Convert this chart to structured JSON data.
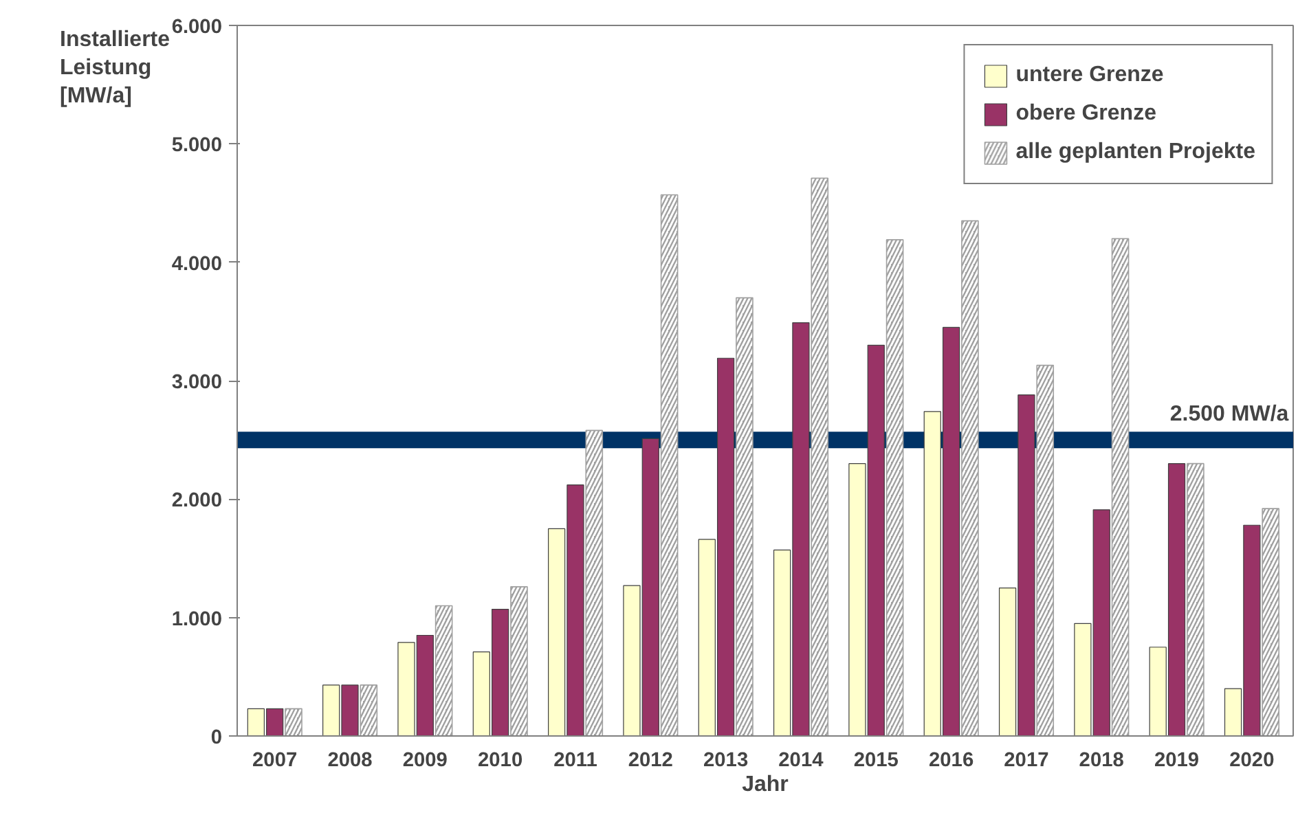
{
  "chart_data": {
    "type": "bar",
    "xlabel": "Jahr",
    "ylabel": "Installierte Leistung [MW/a]",
    "categories": [
      "2007",
      "2008",
      "2009",
      "2010",
      "2011",
      "2012",
      "2013",
      "2014",
      "2015",
      "2016",
      "2017",
      "2018",
      "2019",
      "2020"
    ],
    "series": [
      {
        "name": "untere Grenze",
        "color": "#ffffcc",
        "values": [
          230,
          430,
          790,
          710,
          1750,
          1270,
          1660,
          1570,
          2300,
          2740,
          1250,
          950,
          750,
          400
        ]
      },
      {
        "name": "obere Grenze",
        "color": "#993366",
        "values": [
          230,
          430,
          850,
          1070,
          2120,
          2510,
          3190,
          3490,
          3300,
          3450,
          2880,
          1910,
          2300,
          1780
        ]
      },
      {
        "name": "alle geplanten Projekte",
        "color": "#a0a0a0",
        "values": [
          230,
          430,
          1100,
          1260,
          2580,
          4570,
          3700,
          4710,
          4190,
          4350,
          3130,
          4200,
          2300,
          1920
        ]
      }
    ],
    "ylim": [
      0,
      6000
    ],
    "yticks": [
      {
        "value": 0,
        "label": "0"
      },
      {
        "value": 1000,
        "label": "1.000"
      },
      {
        "value": 2000,
        "label": "2.000"
      },
      {
        "value": 3000,
        "label": "3.000"
      },
      {
        "value": 4000,
        "label": "4.000"
      },
      {
        "value": 5000,
        "label": "5.000"
      },
      {
        "value": 6000,
        "label": "6.000"
      }
    ],
    "ref_lines": [
      {
        "axis": "y",
        "value": 2500,
        "label": "2.500 MW/a",
        "color": "#003366"
      }
    ],
    "grid": false,
    "legend": "top right"
  }
}
